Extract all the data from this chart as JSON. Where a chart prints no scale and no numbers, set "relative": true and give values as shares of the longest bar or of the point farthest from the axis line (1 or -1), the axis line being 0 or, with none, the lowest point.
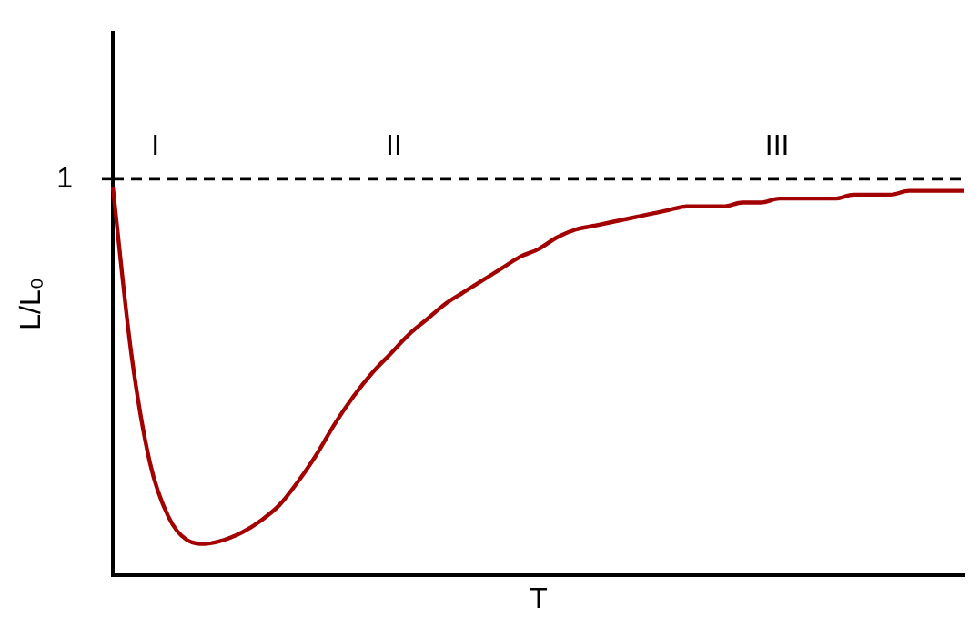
{
  "chart_data": {
    "type": "line",
    "relative": true,
    "xlabel": "T",
    "ylabel": "L/L₀",
    "categories": [
      null,
      null,
      null,
      null,
      null,
      null,
      null,
      null,
      null,
      null,
      null,
      null,
      null,
      null,
      null,
      null,
      null,
      null,
      null,
      null,
      null,
      null,
      null,
      null,
      null,
      null,
      null,
      null,
      null,
      null,
      null,
      null,
      null,
      null,
      null,
      null,
      null,
      null,
      null,
      null,
      null,
      null,
      null,
      null,
      null,
      null,
      null
    ],
    "series": [
      {
        "color": "#a30000",
        "values": [
          1.0,
          0.57,
          0.29,
          0.15,
          0.09,
          0.08,
          0.09,
          0.11,
          0.14,
          0.18,
          0.24,
          0.31,
          0.39,
          0.46,
          0.52,
          0.57,
          0.62,
          0.66,
          0.7,
          0.73,
          0.76,
          0.79,
          0.82,
          0.84,
          0.87,
          0.89,
          0.9,
          0.91,
          0.92,
          0.93,
          0.94,
          0.95,
          0.95,
          0.95,
          0.96,
          0.96,
          0.97,
          0.97,
          0.97,
          0.97,
          0.98,
          0.98,
          0.98,
          0.99,
          0.99,
          0.99,
          0.99
        ]
      }
    ],
    "ref_lines": [
      {
        "axis": "y",
        "value": 1.02,
        "label": "1",
        "color": "#000000",
        "line_style": "dashed"
      }
    ],
    "annotations": [
      "I",
      "II",
      "III"
    ],
    "marker": "none",
    "line_style": "solid",
    "grid": false,
    "legend": false
  }
}
